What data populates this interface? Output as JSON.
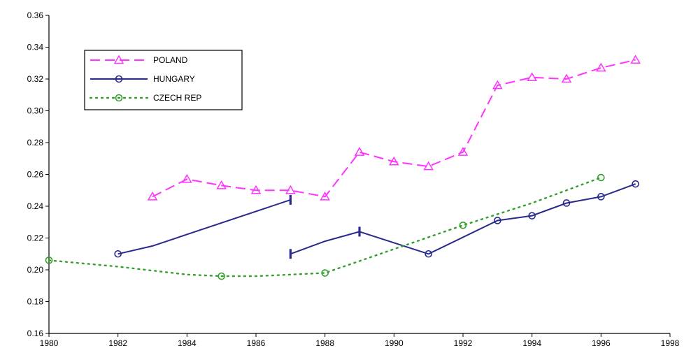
{
  "chart_data": {
    "type": "line",
    "title": "",
    "xlabel": "",
    "ylabel": "",
    "xlim": [
      1980,
      1998
    ],
    "ylim": [
      0.16,
      0.36
    ],
    "x_ticks": [
      "1980",
      "1982",
      "1984",
      "1986",
      "1988",
      "1990",
      "1992",
      "1994",
      "1996",
      "1998"
    ],
    "y_ticks": [
      "0.16",
      "0.18",
      "0.20",
      "0.22",
      "0.24",
      "0.26",
      "0.28",
      "0.30",
      "0.32",
      "0.34",
      "0.36"
    ],
    "grid": false,
    "legend_position": "top-left",
    "series": [
      {
        "name": "POLAND",
        "color": "#ff33ff",
        "line_style": "dashed",
        "marker": "triangle",
        "segments": [
          {
            "points": [
              {
                "x": 1983,
                "y": 0.246
              },
              {
                "x": 1984,
                "y": 0.257
              },
              {
                "x": 1985,
                "y": 0.253
              },
              {
                "x": 1986,
                "y": 0.25
              },
              {
                "x": 1987,
                "y": 0.25
              },
              {
                "x": 1988,
                "y": 0.246
              },
              {
                "x": 1989,
                "y": 0.274
              },
              {
                "x": 1990,
                "y": 0.268
              },
              {
                "x": 1991,
                "y": 0.265
              },
              {
                "x": 1992,
                "y": 0.274
              },
              {
                "x": 1993,
                "y": 0.316
              },
              {
                "x": 1994,
                "y": 0.321
              },
              {
                "x": 1995,
                "y": 0.32
              },
              {
                "x": 1996,
                "y": 0.327
              },
              {
                "x": 1997,
                "y": 0.332
              }
            ]
          }
        ]
      },
      {
        "name": "HUNGARY",
        "color": "#2a2a8c",
        "line_style": "solid",
        "marker": "circle",
        "segments": [
          {
            "points": [
              {
                "x": 1982,
                "y": 0.21,
                "marker": true
              },
              {
                "x": 1983,
                "y": 0.215,
                "marker": false
              },
              {
                "x": 1987,
                "y": 0.244,
                "marker": false,
                "end_bar": true
              }
            ]
          },
          {
            "points": [
              {
                "x": 1987,
                "y": 0.21,
                "marker": false,
                "end_bar": true
              },
              {
                "x": 1988,
                "y": 0.218,
                "marker": false
              },
              {
                "x": 1989,
                "y": 0.224,
                "marker": false,
                "end_bar": true
              },
              {
                "x": 1991,
                "y": 0.21,
                "marker": true
              },
              {
                "x": 1993,
                "y": 0.231,
                "marker": true
              },
              {
                "x": 1994,
                "y": 0.234,
                "marker": true
              },
              {
                "x": 1995,
                "y": 0.242,
                "marker": true
              },
              {
                "x": 1996,
                "y": 0.246,
                "marker": true
              },
              {
                "x": 1997,
                "y": 0.254,
                "marker": true
              }
            ]
          }
        ]
      },
      {
        "name": "CZECH REP",
        "color": "#33a02c",
        "line_style": "dotted",
        "marker": "circle",
        "segments": [
          {
            "points": [
              {
                "x": 1980,
                "y": 0.206,
                "marker": true
              },
              {
                "x": 1982,
                "y": 0.202,
                "marker": false
              },
              {
                "x": 1984,
                "y": 0.197,
                "marker": false
              },
              {
                "x": 1985,
                "y": 0.196,
                "marker": true
              },
              {
                "x": 1986,
                "y": 0.196,
                "marker": false
              },
              {
                "x": 1988,
                "y": 0.198,
                "marker": true
              },
              {
                "x": 1990,
                "y": 0.213,
                "marker": false
              },
              {
                "x": 1992,
                "y": 0.228,
                "marker": true
              },
              {
                "x": 1994,
                "y": 0.242,
                "marker": false
              },
              {
                "x": 1996,
                "y": 0.258,
                "marker": true
              }
            ]
          }
        ]
      }
    ]
  }
}
